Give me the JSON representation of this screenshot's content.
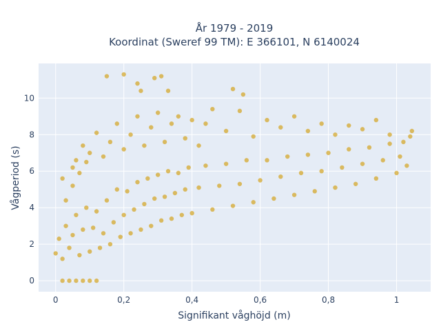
{
  "chart_data": {
    "type": "scatter",
    "title_lines": [
      "År 1979 - 2019",
      "Koordinat (Sweref 99 TM): E 366101, N 6140024"
    ],
    "xlabel": "Signifikant våghöjd (m)",
    "ylabel": "Vågperiod (s)",
    "xlim": [
      -0.05,
      1.1
    ],
    "ylim": [
      -0.6,
      11.9
    ],
    "x_ticks": [
      0,
      0.2,
      0.4,
      0.6,
      0.8,
      1
    ],
    "x_tick_labels": [
      "0",
      "0,2",
      "0,4",
      "0,6",
      "0,8",
      "1"
    ],
    "y_ticks": [
      0,
      2,
      4,
      6,
      8,
      10
    ],
    "y_tick_labels": [
      "0",
      "2",
      "4",
      "6",
      "8",
      "10"
    ],
    "grid": true,
    "legend": "none",
    "colors": {
      "marker": "#d4a420",
      "plot_background": "#e5ecf6",
      "grid": "#ffffff",
      "text": "#2a3f5f"
    },
    "series": [
      {
        "marker_opacity": 0.7,
        "points": [
          [
            0.0,
            1.5
          ],
          [
            0.01,
            2.3
          ],
          [
            0.02,
            1.2
          ],
          [
            0.03,
            3.0
          ],
          [
            0.04,
            1.8
          ],
          [
            0.05,
            2.5
          ],
          [
            0.06,
            3.6
          ],
          [
            0.07,
            1.4
          ],
          [
            0.08,
            2.8
          ],
          [
            0.09,
            4.0
          ],
          [
            0.1,
            1.6
          ],
          [
            0.11,
            2.9
          ],
          [
            0.12,
            3.8
          ],
          [
            0.13,
            1.8
          ],
          [
            0.14,
            2.6
          ],
          [
            0.15,
            4.4
          ],
          [
            0.16,
            2.0
          ],
          [
            0.17,
            3.2
          ],
          [
            0.18,
            5.0
          ],
          [
            0.19,
            2.4
          ],
          [
            0.2,
            3.6
          ],
          [
            0.21,
            4.9
          ],
          [
            0.22,
            2.6
          ],
          [
            0.23,
            3.9
          ],
          [
            0.24,
            5.4
          ],
          [
            0.25,
            2.8
          ],
          [
            0.26,
            4.2
          ],
          [
            0.27,
            5.6
          ],
          [
            0.28,
            3.0
          ],
          [
            0.29,
            4.5
          ],
          [
            0.3,
            5.8
          ],
          [
            0.31,
            3.3
          ],
          [
            0.32,
            4.6
          ],
          [
            0.33,
            6.0
          ],
          [
            0.34,
            3.4
          ],
          [
            0.35,
            4.8
          ],
          [
            0.36,
            5.9
          ],
          [
            0.37,
            3.6
          ],
          [
            0.38,
            5.0
          ],
          [
            0.39,
            6.2
          ],
          [
            0.4,
            3.7
          ],
          [
            0.42,
            5.1
          ],
          [
            0.44,
            6.3
          ],
          [
            0.46,
            3.9
          ],
          [
            0.48,
            5.2
          ],
          [
            0.5,
            6.4
          ],
          [
            0.52,
            4.1
          ],
          [
            0.54,
            5.3
          ],
          [
            0.56,
            6.6
          ],
          [
            0.58,
            4.3
          ],
          [
            0.6,
            5.5
          ],
          [
            0.62,
            6.6
          ],
          [
            0.64,
            4.5
          ],
          [
            0.66,
            5.7
          ],
          [
            0.68,
            6.8
          ],
          [
            0.7,
            4.7
          ],
          [
            0.72,
            5.9
          ],
          [
            0.74,
            6.9
          ],
          [
            0.76,
            4.9
          ],
          [
            0.78,
            6.0
          ],
          [
            0.8,
            7.0
          ],
          [
            0.82,
            5.1
          ],
          [
            0.84,
            6.2
          ],
          [
            0.86,
            7.2
          ],
          [
            0.88,
            5.3
          ],
          [
            0.9,
            6.4
          ],
          [
            0.92,
            7.3
          ],
          [
            0.94,
            5.6
          ],
          [
            0.96,
            6.6
          ],
          [
            0.98,
            7.5
          ],
          [
            1.0,
            5.9
          ],
          [
            1.01,
            6.8
          ],
          [
            1.02,
            7.6
          ],
          [
            1.03,
            6.3
          ],
          [
            1.04,
            7.9
          ],
          [
            1.045,
            8.2
          ],
          [
            0.06,
            6.6
          ],
          [
            0.08,
            7.4
          ],
          [
            0.1,
            7.0
          ],
          [
            0.12,
            8.1
          ],
          [
            0.14,
            6.8
          ],
          [
            0.16,
            7.6
          ],
          [
            0.18,
            8.6
          ],
          [
            0.2,
            7.2
          ],
          [
            0.22,
            8.0
          ],
          [
            0.24,
            9.0
          ],
          [
            0.26,
            7.4
          ],
          [
            0.28,
            8.4
          ],
          [
            0.3,
            9.2
          ],
          [
            0.32,
            7.6
          ],
          [
            0.34,
            8.6
          ],
          [
            0.36,
            9.0
          ],
          [
            0.38,
            7.8
          ],
          [
            0.4,
            8.8
          ],
          [
            0.42,
            7.4
          ],
          [
            0.44,
            8.6
          ],
          [
            0.46,
            9.4
          ],
          [
            0.5,
            8.2
          ],
          [
            0.54,
            9.3
          ],
          [
            0.58,
            7.9
          ],
          [
            0.62,
            8.8
          ],
          [
            0.66,
            8.4
          ],
          [
            0.7,
            9.0
          ],
          [
            0.74,
            8.2
          ],
          [
            0.78,
            8.6
          ],
          [
            0.82,
            8.0
          ],
          [
            0.86,
            8.5
          ],
          [
            0.9,
            8.3
          ],
          [
            0.94,
            8.8
          ],
          [
            0.98,
            8.0
          ],
          [
            0.15,
            11.2
          ],
          [
            0.2,
            11.3
          ],
          [
            0.24,
            10.8
          ],
          [
            0.29,
            11.1
          ],
          [
            0.31,
            11.2
          ],
          [
            0.33,
            10.4
          ],
          [
            0.52,
            10.5
          ],
          [
            0.55,
            10.2
          ],
          [
            0.25,
            10.4
          ],
          [
            0.02,
            0.0
          ],
          [
            0.04,
            0.0
          ],
          [
            0.06,
            0.0
          ],
          [
            0.08,
            0.0
          ],
          [
            0.1,
            0.0
          ],
          [
            0.12,
            0.0
          ],
          [
            0.02,
            5.6
          ],
          [
            0.03,
            4.4
          ],
          [
            0.05,
            5.2
          ],
          [
            0.05,
            6.2
          ],
          [
            0.07,
            5.9
          ],
          [
            0.09,
            6.5
          ]
        ]
      }
    ]
  }
}
